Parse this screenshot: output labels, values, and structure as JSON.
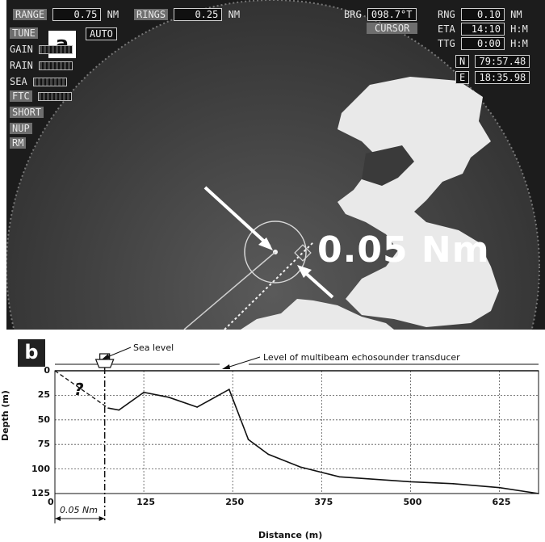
{
  "panel_a": {
    "tag": "a",
    "range": {
      "label": "RANGE",
      "value": "0.75",
      "unit": "NM"
    },
    "rings": {
      "label": "RINGS",
      "value": "0.25",
      "unit": "NM"
    },
    "left_controls": [
      "TUNE",
      "GAIN",
      "RAIN",
      "SEA",
      "FTC",
      "SHORT",
      "NUP",
      "RM"
    ],
    "tune_mode": "AUTO",
    "brg": {
      "label": "BRG",
      "value": "098.7°T"
    },
    "cursor_label": "CURSOR",
    "rng": {
      "label": "RNG",
      "value": "0.10",
      "unit": "NM"
    },
    "eta": {
      "label": "ETA",
      "value": "14:10",
      "unit": "H:M"
    },
    "ttg": {
      "label": "TTG",
      "value": "0:00",
      "unit": "H:M"
    },
    "north": {
      "label": "N",
      "value": "79:57.48"
    },
    "east": {
      "label": "E",
      "value": "18:35.98"
    },
    "distance_label": "0.05 Nm"
  },
  "panel_b": {
    "tag": "b",
    "annotations": {
      "sea_level": "Sea level",
      "transducer": "Level of multibeam echosounder transducer",
      "unknown": "?",
      "offset": "0.05 Nm"
    },
    "chart_data": {
      "type": "line",
      "title": "",
      "xlabel": "Distance (m)",
      "ylabel": "Depth (m)",
      "xlim": [
        0,
        680
      ],
      "ylim": [
        125,
        0
      ],
      "x_ticks": [
        0,
        125,
        250,
        375,
        500,
        625
      ],
      "y_ticks": [
        0,
        25,
        50,
        75,
        100,
        125
      ],
      "grid": true,
      "series": [
        {
          "x": [
            75,
            90,
            125,
            160,
            200,
            245,
            272,
            300,
            345,
            400,
            500,
            560,
            625,
            680
          ],
          "y": [
            38,
            40,
            22,
            27,
            37,
            19,
            70,
            85,
            98,
            108,
            113,
            115,
            119,
            125
          ]
        }
      ],
      "estimated_segment": {
        "x": [
          0,
          75
        ],
        "y": [
          0,
          38
        ]
      },
      "ship_position_x": 70
    }
  }
}
